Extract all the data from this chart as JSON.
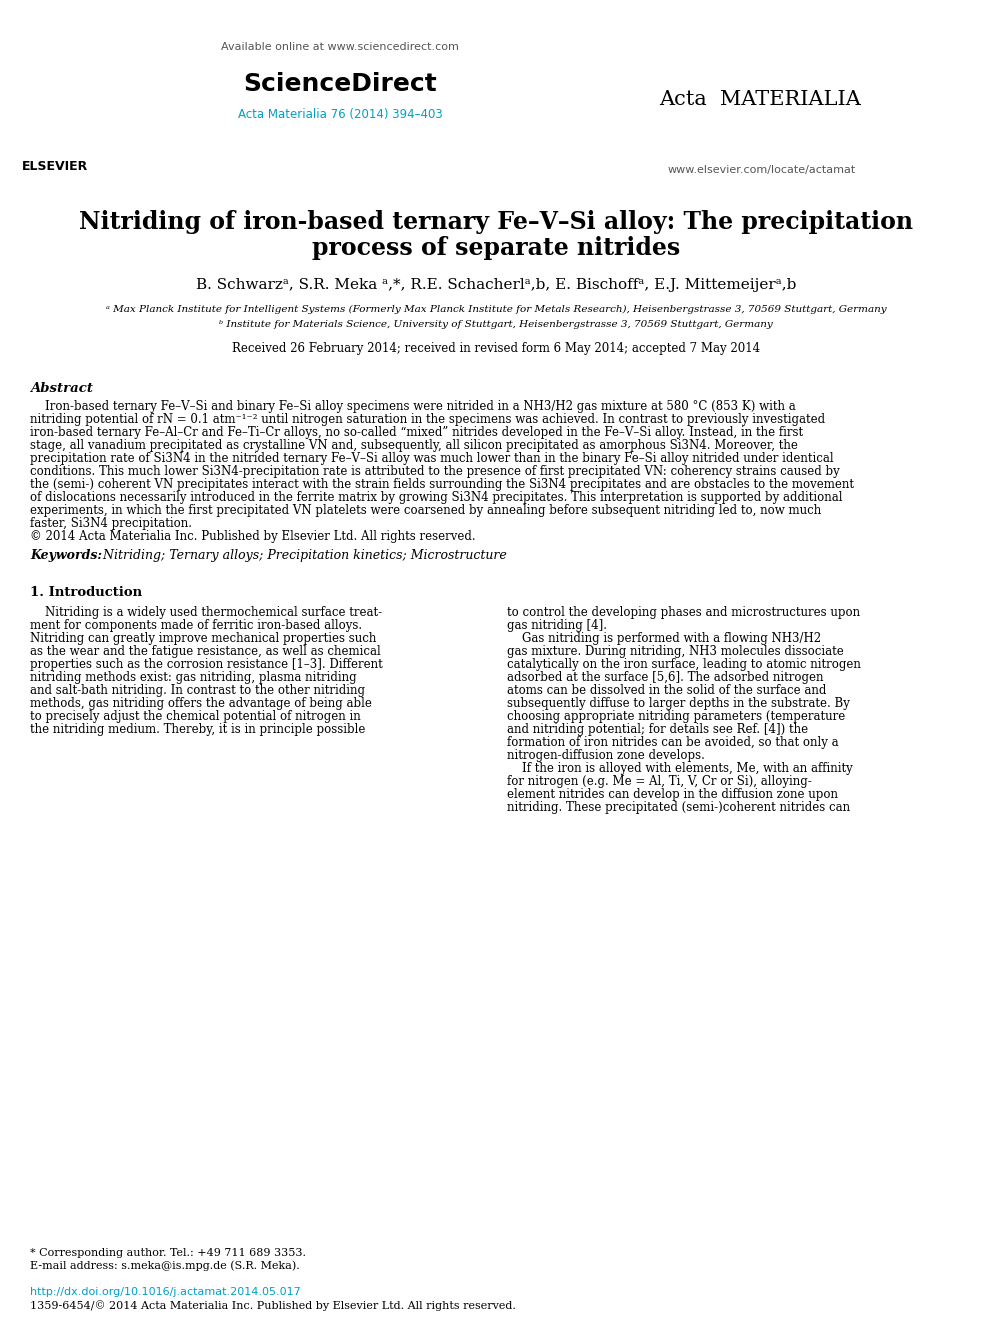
{
  "bg_color": "#ffffff",
  "header_available_text": "Available online at www.sciencedirect.com",
  "header_sd_text": "ScienceDirect",
  "header_journal_text": "Acta Materialia 76 (2014) 394–403",
  "header_url_text": "www.elsevier.com/locate/actamat",
  "title_line1": "Nitriding of iron-based ternary Fe–V–Si alloy: The precipitation",
  "title_line2": "process of separate nitrides",
  "authors_text": "B. Schwarzᵃ, S.R. Meka ᵃ,*, R.E. Schacherlᵃ,b, E. Bischoffᵃ, E.J. Mittemeijerᵃ,b",
  "affil_a": "ᵃ Max Planck Institute for Intelligent Systems (Formerly Max Planck Institute for Metals Research), Heisenbergstrasse 3, 70569 Stuttgart, Germany",
  "affil_b": "ᵇ Institute for Materials Science, University of Stuttgart, Heisenbergstrasse 3, 70569 Stuttgart, Germany",
  "received_text": "Received 26 February 2014; received in revised form 6 May 2014; accepted 7 May 2014",
  "abstract_heading": "Abstract",
  "abstract_lines": [
    "    Iron-based ternary Fe–V–Si and binary Fe–Si alloy specimens were nitrided in a NH3/H2 gas mixture at 580 °C (853 K) with a",
    "nitriding potential of rN = 0.1 atm⁻¹⁻² until nitrogen saturation in the specimens was achieved. In contrast to previously investigated",
    "iron-based ternary Fe–Al–Cr and Fe–Ti–Cr alloys, no so-called “mixed” nitrides developed in the Fe–V–Si alloy. Instead, in the first",
    "stage, all vanadium precipitated as crystalline VN and, subsequently, all silicon precipitated as amorphous Si3N4. Moreover, the",
    "precipitation rate of Si3N4 in the nitrided ternary Fe–V–Si alloy was much lower than in the binary Fe–Si alloy nitrided under identical",
    "conditions. This much lower Si3N4-precipitation rate is attributed to the presence of first precipitated VN: coherency strains caused by",
    "the (semi-) coherent VN precipitates interact with the strain fields surrounding the Si3N4 precipitates and are obstacles to the movement",
    "of dislocations necessarily introduced in the ferrite matrix by growing Si3N4 precipitates. This interpretation is supported by additional",
    "experiments, in which the first precipitated VN platelets were coarsened by annealing before subsequent nitriding led to, now much",
    "faster, Si3N4 precipitation.",
    "© 2014 Acta Materialia Inc. Published by Elsevier Ltd. All rights reserved."
  ],
  "keywords_label": "Keywords:",
  "keywords_text": "  Nitriding; Ternary alloys; Precipitation kinetics; Microstructure",
  "section1_heading": "1. Introduction",
  "col1_lines": [
    "    Nitriding is a widely used thermochemical surface treat-",
    "ment for components made of ferritic iron-based alloys.",
    "Nitriding can greatly improve mechanical properties such",
    "as the wear and the fatigue resistance, as well as chemical",
    "properties such as the corrosion resistance [1–3]. Different",
    "nitriding methods exist: gas nitriding, plasma nitriding",
    "and salt-bath nitriding. In contrast to the other nitriding",
    "methods, gas nitriding offers the advantage of being able",
    "to precisely adjust the chemical potential of nitrogen in",
    "the nitriding medium. Thereby, it is in principle possible"
  ],
  "col2_lines": [
    "to control the developing phases and microstructures upon",
    "gas nitriding [4].",
    "    Gas nitriding is performed with a flowing NH3/H2",
    "gas mixture. During nitriding, NH3 molecules dissociate",
    "catalytically on the iron surface, leading to atomic nitrogen",
    "adsorbed at the surface [5,6]. The adsorbed nitrogen",
    "atoms can be dissolved in the solid of the surface and",
    "subsequently diffuse to larger depths in the substrate. By",
    "choosing appropriate nitriding parameters (temperature",
    "and nitriding potential; for details see Ref. [4]) the",
    "formation of iron nitrides can be avoided, so that only a",
    "nitrogen-diffusion zone develops.",
    "    If the iron is alloyed with elements, Me, with an affinity",
    "for nitrogen (e.g. Me = Al, Ti, V, Cr or Si), alloying-",
    "element nitrides can develop in the diffusion zone upon",
    "nitriding. These precipitated (semi-)coherent nitrides can"
  ],
  "footnote1": "* Corresponding author. Tel.: +49 711 689 3353.",
  "footnote2": "E-mail address: s.meka@is.mpg.de (S.R. Meka).",
  "footer_doi": "http://dx.doi.org/10.1016/j.actamat.2014.05.017",
  "footer_issn": "1359-6454/© 2014 Acta Materialia Inc. Published by Elsevier Ltd. All rights reserved.",
  "journal_ref_color": "#00a0c6",
  "doi_color": "#00a0c6",
  "text_color": "#000000",
  "bg_color2": "#ffffff"
}
